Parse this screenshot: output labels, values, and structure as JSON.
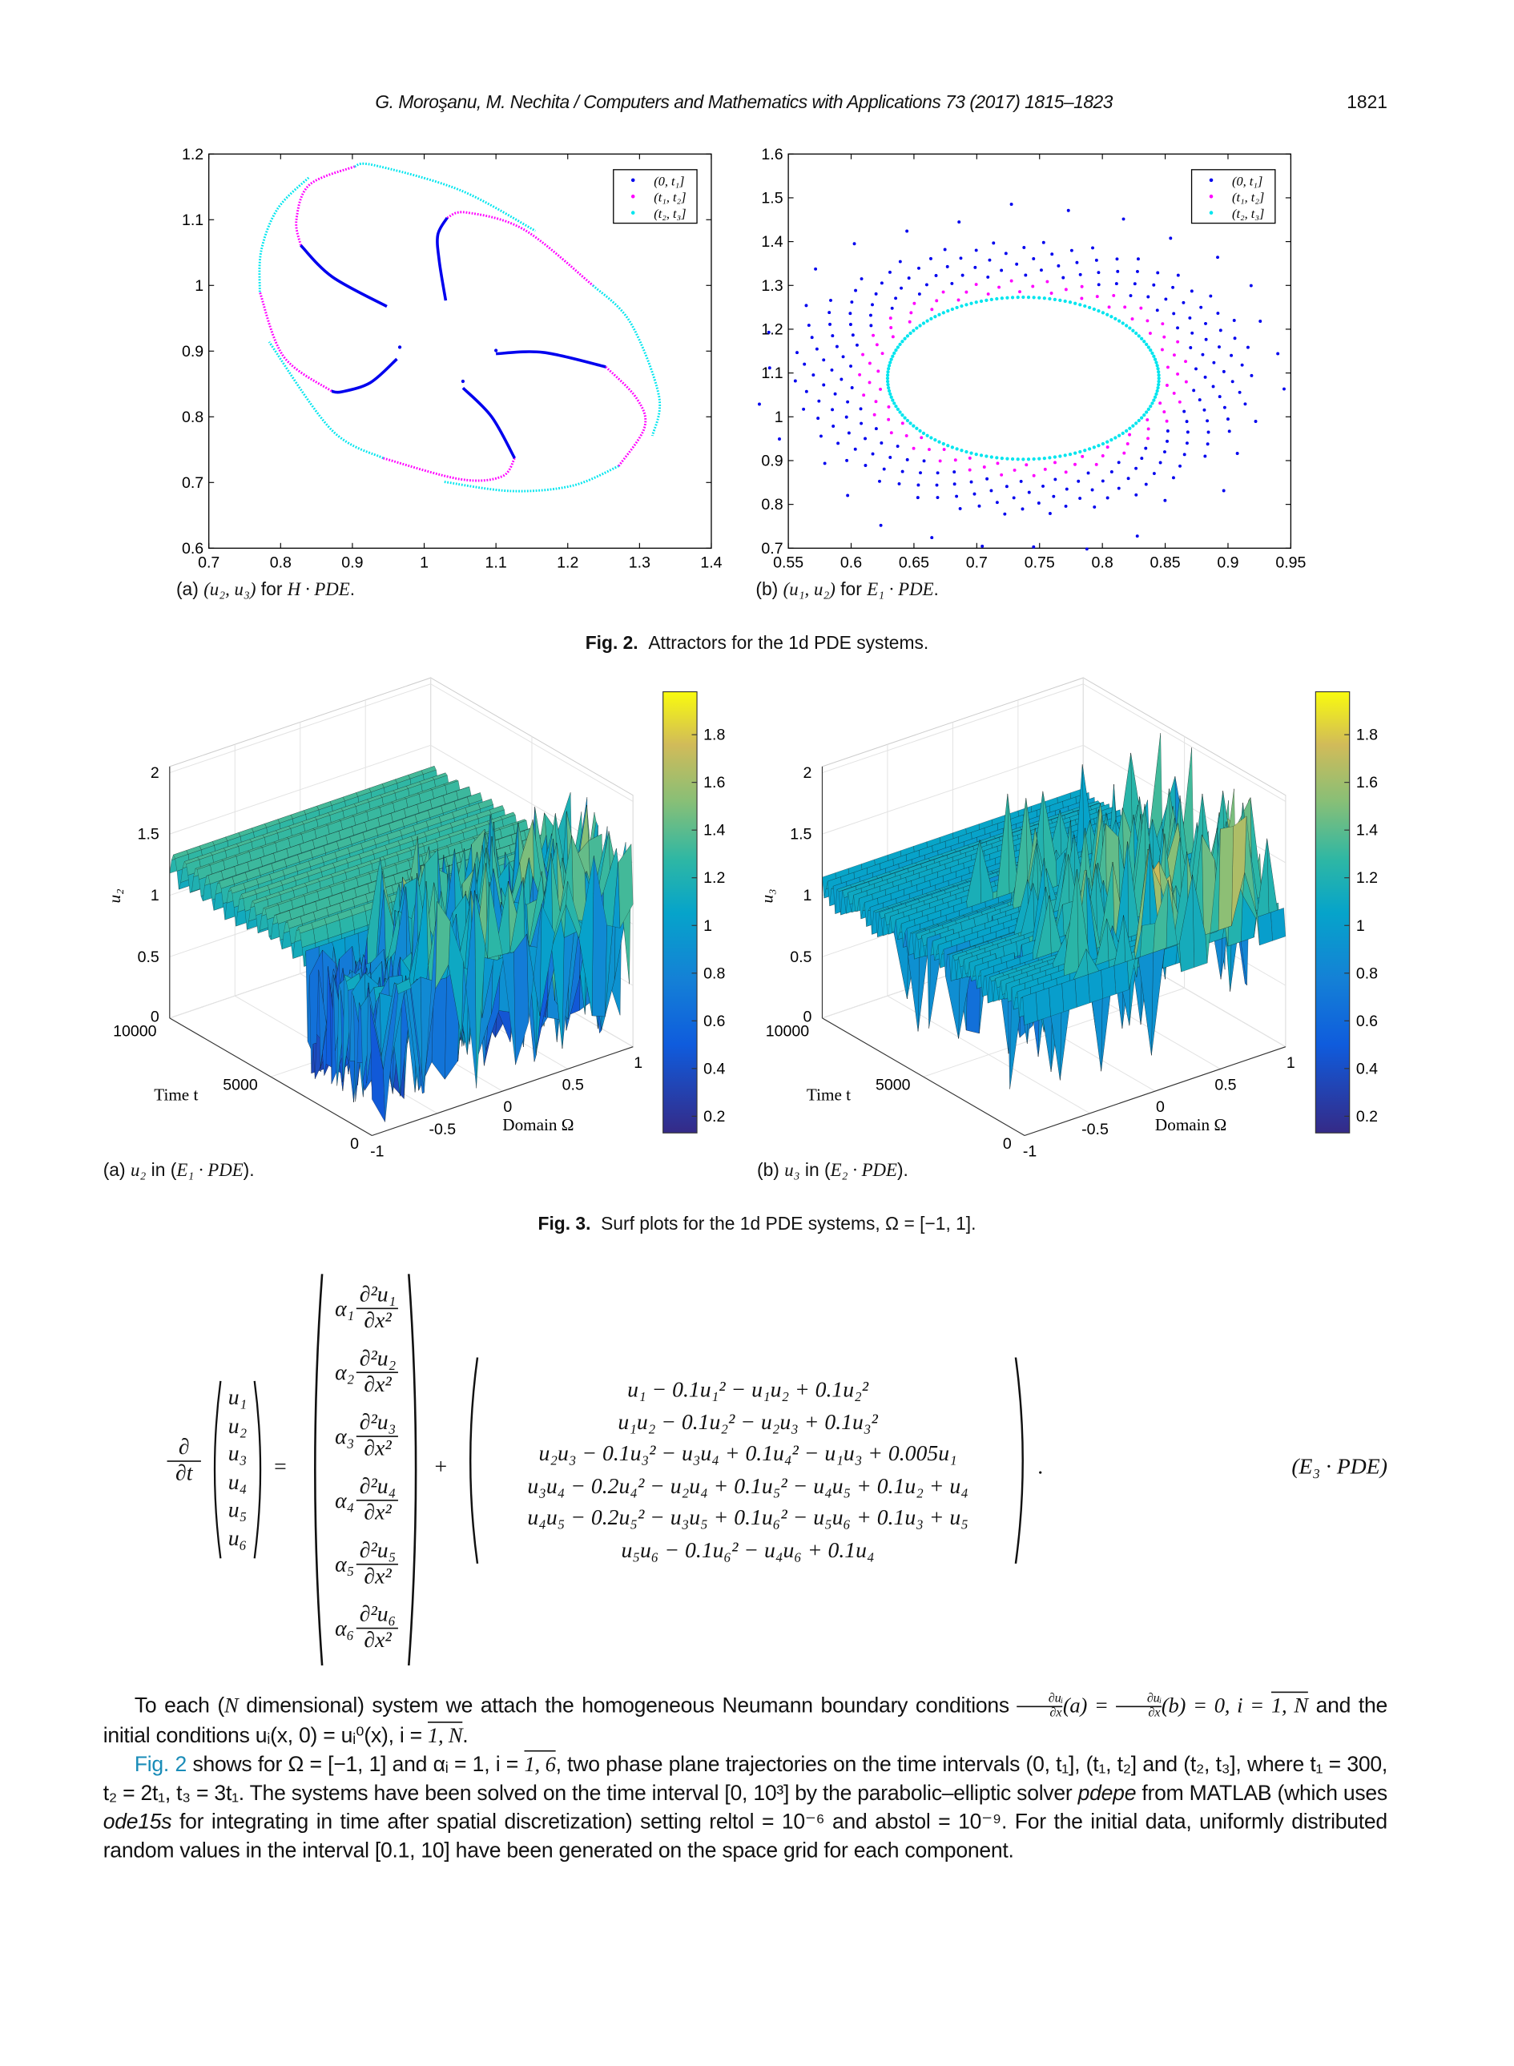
{
  "header": {
    "running_title": "G. Moroşanu, M. Nechita / Computers and Mathematics with Applications 73 (2017) 1815–1823",
    "page_number": "1821"
  },
  "figure2": {
    "label": "Fig. 2.",
    "caption": "Attractors for the 1d PDE systems.",
    "sub_a": {
      "tag": "(a)",
      "math": "(u₂, u₃)",
      "mid": " for ",
      "system": "H · PDE",
      "end": "."
    },
    "sub_b": {
      "tag": "(b)",
      "math": "(u₁, u₂)",
      "mid": " for ",
      "system": "E₁ · PDE",
      "end": "."
    }
  },
  "figure3": {
    "label": "Fig. 3.",
    "caption": "Surf plots for the 1d PDE systems, Ω = [−1, 1].",
    "sub_a": {
      "tag": "(a)",
      "math": "u₂",
      "mid": " in (",
      "system": "E₁ · PDE",
      "end": ")."
    },
    "sub_b": {
      "tag": "(b)",
      "math": "u₃",
      "mid": " in (",
      "system": "E₂ · PDE",
      "end": ")."
    }
  },
  "equation": {
    "lhs_num": "∂",
    "lhs_den": "∂t",
    "vector": [
      "u₁",
      "u₂",
      "u₃",
      "u₄",
      "u₅",
      "u₆"
    ],
    "equals": "=",
    "plus": "+",
    "diffusion": [
      {
        "coef": "α₁",
        "num": "∂²u₁",
        "den": "∂x²"
      },
      {
        "coef": "α₂",
        "num": "∂²u₂",
        "den": "∂x²"
      },
      {
        "coef": "α₃",
        "num": "∂²u₃",
        "den": "∂x²"
      },
      {
        "coef": "α₄",
        "num": "∂²u₄",
        "den": "∂x²"
      },
      {
        "coef": "α₅",
        "num": "∂²u₅",
        "den": "∂x²"
      },
      {
        "coef": "α₆",
        "num": "∂²u₆",
        "den": "∂x²"
      }
    ],
    "reaction": [
      "u₁ − 0.1u₁² − u₁u₂ + 0.1u₂²",
      "u₁u₂ − 0.1u₂² − u₂u₃ + 0.1u₃²",
      "u₂u₃ − 0.1u₃² − u₃u₄ + 0.1u₄² − u₁u₃ + 0.005u₁",
      "u₃u₄ − 0.2u₄² − u₂u₄ + 0.1u₅² − u₄u₅ + 0.1u₂ + u₄",
      "u₄u₅ − 0.2u₅² − u₃u₅ + 0.1u₆² − u₅u₆ + 0.1u₃ + u₅",
      "u₅u₆ − 0.1u₆² − u₄u₆ + 0.1u₄"
    ],
    "period": ".",
    "label": "(E₃ · PDE)"
  },
  "paragraphs": {
    "p1": {
      "a": "To each (",
      "b": "N",
      "c": " dimensional) system we attach the homogeneous Neumann boundary conditions ",
      "frac_num": "∂uᵢ",
      "frac_den": "∂x",
      "d": "(a) = ",
      "e": "(b) = 0, i = ",
      "range": "1, N",
      "f": " and the initial conditions uᵢ(x, 0) = uᵢ⁰(x), i = ",
      "g": "."
    },
    "p2": {
      "link": "Fig. 2",
      "a": " shows for Ω = [−1, 1] and αᵢ = 1, i = ",
      "range": "1, 6",
      "b": ", two phase plane trajectories on the time intervals (0, t₁], (t₁, t₂] and (t₂, t₃], where t₁ = 300, t₂ = 2t₁, t₃ = 3t₁. The systems have been solved on the time interval [0, 10³] by the parabolic–elliptic solver ",
      "c": "pdepe",
      "d": " from MATLAB (which uses ",
      "e": "ode15s",
      "f": " for integrating in time after spatial discretization) setting reltol = 10⁻⁶ and abstol = 10⁻⁹. For the initial data, uniformly distributed random values in the interval [0.1, 10] have been generated on the space grid for each component."
    }
  },
  "chart_data": [
    {
      "type": "scatter",
      "title": "(u₂, u₃) for H · PDE",
      "xlabel": "",
      "ylabel": "",
      "xlim": [
        0.7,
        1.4
      ],
      "ylim": [
        0.6,
        1.2
      ],
      "xticks": [
        0.7,
        0.8,
        0.9,
        1,
        1.1,
        1.2,
        1.3,
        1.4
      ],
      "yticks": [
        0.6,
        0.7,
        0.8,
        0.9,
        1,
        1.1,
        1.2
      ],
      "grid": false,
      "legend": {
        "placement": "top-right",
        "entries": [
          "(0, t₁]",
          "(t₁, t₂]",
          "(t₂, t₃]"
        ]
      },
      "series": [
        {
          "name": "(0, t₁]",
          "color": "#0000ee",
          "curves": [
            [
              [
                0.828,
                1.061
              ],
              [
                0.872,
                1.013
              ],
              [
                0.948,
                0.968
              ]
            ],
            [
              [
                1.03,
                0.977
              ],
              [
                1.021,
                1.037
              ],
              [
                1.019,
                1.077
              ],
              [
                1.032,
                1.103
              ]
            ],
            [
              [
                1.1,
                0.896
              ],
              [
                1.166,
                0.898
              ],
              [
                1.253,
                0.876
              ]
            ],
            [
              [
                1.054,
                0.844
              ],
              [
                1.094,
                0.8
              ],
              [
                1.126,
                0.737
              ]
            ],
            [
              [
                0.962,
                0.888
              ],
              [
                0.925,
                0.852
              ],
              [
                0.885,
                0.838
              ],
              [
                0.871,
                0.839
              ]
            ]
          ],
          "points": [
            [
              1.054,
              0.854
            ],
            [
              0.966,
              0.906
            ],
            [
              1.1,
              0.901
            ]
          ]
        },
        {
          "name": "(t₁, t₂]",
          "color": "#ff00ff",
          "curves": [
            [
              [
                0.828,
                1.061
              ],
              [
                0.822,
                1.1
              ],
              [
                0.84,
                1.153
              ],
              [
                0.903,
                1.181
              ]
            ],
            [
              [
                1.032,
                1.103
              ],
              [
                1.059,
                1.111
              ],
              [
                1.139,
                1.085
              ],
              [
                1.235,
                1.0
              ]
            ],
            [
              [
                1.253,
                0.876
              ],
              [
                1.296,
                0.828
              ],
              [
                1.307,
                0.784
              ],
              [
                1.271,
                0.725
              ]
            ],
            [
              [
                1.126,
                0.737
              ],
              [
                1.108,
                0.709
              ],
              [
                1.05,
                0.705
              ],
              [
                0.943,
                0.737
              ]
            ],
            [
              [
                0.871,
                0.839
              ],
              [
                0.804,
                0.892
              ],
              [
                0.771,
                0.99
              ]
            ]
          ]
        },
        {
          "name": "(t₂, t₃]",
          "color": "#00e5ee",
          "curves": [
            [
              [
                0.903,
                1.181
              ],
              [
                0.93,
                1.183
              ],
              [
                1.05,
                1.145
              ],
              [
                1.155,
                1.083
              ]
            ],
            [
              [
                1.235,
                1.0
              ],
              [
                1.287,
                0.944
              ],
              [
                1.327,
                0.832
              ],
              [
                1.318,
                0.771
              ]
            ],
            [
              [
                1.271,
                0.725
              ],
              [
                1.206,
                0.695
              ],
              [
                1.121,
                0.687
              ],
              [
                1.028,
                0.701
              ]
            ],
            [
              [
                0.943,
                0.737
              ],
              [
                0.871,
                0.78
              ],
              [
                0.784,
                0.914
              ]
            ],
            [
              [
                0.771,
                0.99
              ],
              [
                0.773,
                1.053
              ],
              [
                0.796,
                1.117
              ],
              [
                0.839,
                1.164
              ]
            ]
          ]
        }
      ]
    },
    {
      "type": "scatter",
      "title": "(u₁, u₂) for E₁ · PDE",
      "xlabel": "",
      "ylabel": "",
      "xlim": [
        0.55,
        0.95
      ],
      "ylim": [
        0.7,
        1.6
      ],
      "xticks": [
        0.55,
        0.6,
        0.65,
        0.7,
        0.75,
        0.8,
        0.85,
        0.9,
        0.95
      ],
      "yticks": [
        0.7,
        0.8,
        0.9,
        1,
        1.1,
        1.2,
        1.3,
        1.4,
        1.5,
        1.6
      ],
      "grid": false,
      "legend": {
        "placement": "top-right",
        "entries": [
          "(0, t₁]",
          "(t₁, t₂]",
          "(t₂, t₃]"
        ]
      },
      "colors": [
        "#0000ee",
        "#ff00ff",
        "#00e5ee"
      ],
      "attractor_ellipse": {
        "center": [
          0.737,
          1.088
        ],
        "rx": 0.108,
        "ry": 0.185
      },
      "spiral_arms": 30,
      "outer_extent": {
        "x": [
          0.6,
          0.915
        ],
        "y": [
          0.78,
          1.54
        ]
      }
    },
    {
      "type": "surface",
      "title": "u₂ in (E₁ · PDE)",
      "xlabel": "Domain Ω",
      "ylabel": "Time t",
      "zlabel": "u₂",
      "xlim": [
        -1,
        1
      ],
      "ylim": [
        0,
        10000
      ],
      "zlim": [
        0,
        2
      ],
      "xticks": [
        -1,
        -0.5,
        0,
        0.5,
        1
      ],
      "yticks": [
        0,
        5000,
        10000
      ],
      "zticks": [
        0,
        0.5,
        1,
        1.5,
        2
      ],
      "colorbar": {
        "ticks": [
          0.2,
          0.4,
          0.6,
          0.8,
          1,
          1.2,
          1.4,
          1.6,
          1.8
        ],
        "clim": [
          0.13,
          1.98
        ],
        "colormap": "parula"
      },
      "regimes": {
        "periodic_ridges_t_above": 3200,
        "ridge_level": [
          1.05,
          1.35
        ],
        "spike_level_max": 1.9
      }
    },
    {
      "type": "surface",
      "title": "u₃ in (E₂ · PDE)",
      "xlabel": "Domain Ω",
      "ylabel": "Time t",
      "zlabel": "u₃",
      "xlim": [
        -1,
        1
      ],
      "ylim": [
        0,
        10000
      ],
      "zlim": [
        0,
        2
      ],
      "xticks": [
        -1,
        -0.5,
        0,
        0.5,
        1
      ],
      "yticks": [
        0,
        5000,
        10000
      ],
      "zticks": [
        0,
        0.5,
        1,
        1.5,
        2
      ],
      "colorbar": {
        "ticks": [
          0.2,
          0.4,
          0.6,
          0.8,
          1,
          1.2,
          1.4,
          1.6,
          1.8
        ],
        "clim": [
          0.13,
          1.98
        ],
        "colormap": "parula"
      },
      "regimes": {
        "ridge_level": [
          0.9,
          1.15
        ],
        "spike_level_max": 2.0
      }
    }
  ]
}
